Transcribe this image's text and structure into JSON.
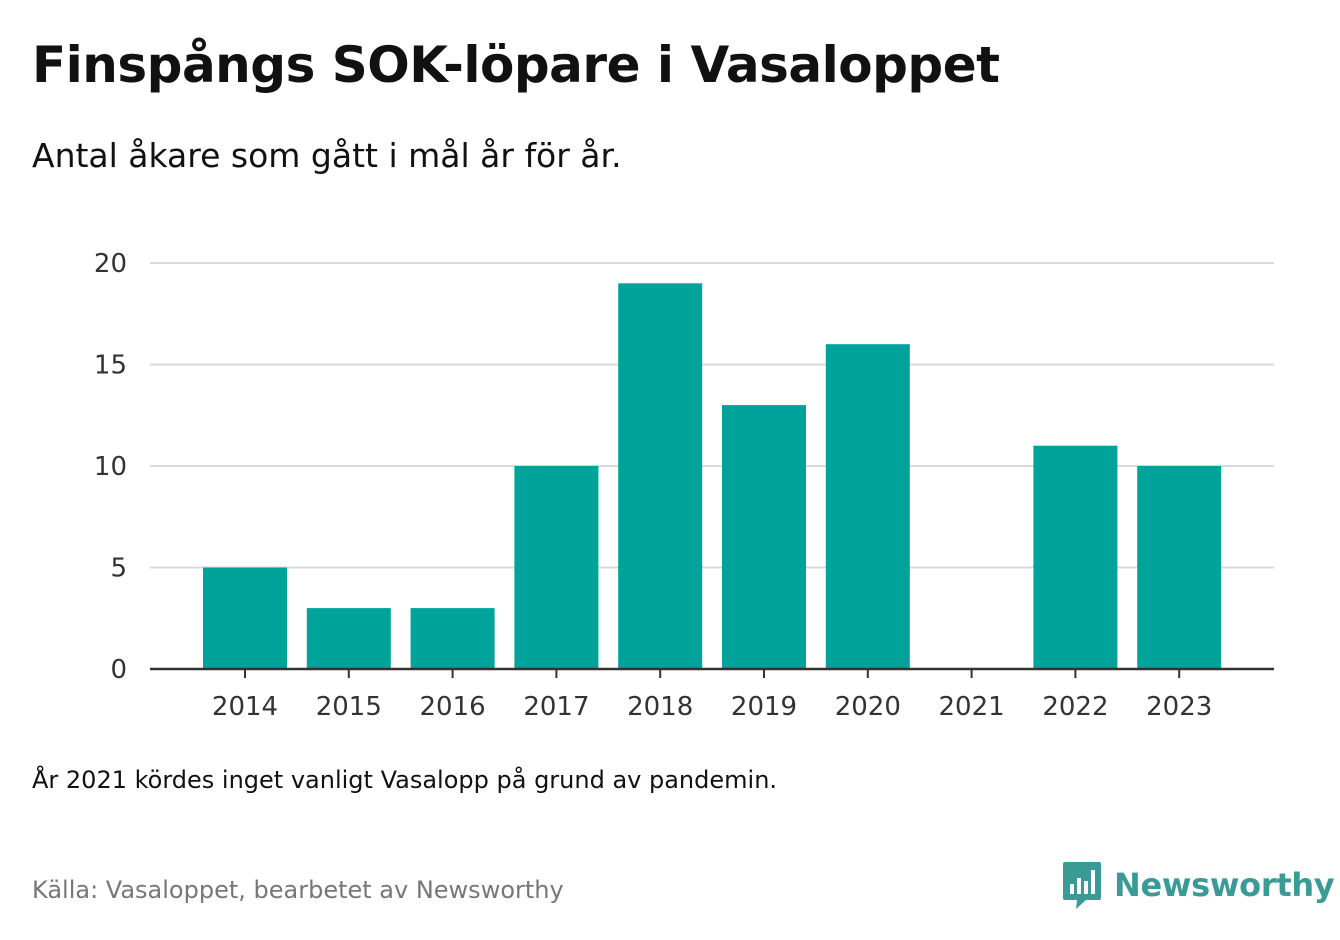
{
  "header": {
    "title": "Finspångs SOK-löpare i Vasaloppet",
    "subtitle": "Antal åkare som gått i mål år för år."
  },
  "footer": {
    "note": "År 2021 kördes inget vanligt Vasalopp på grund av pandemin.",
    "source": "Källa: Vasaloppet, bearbetet av Newsworthy",
    "logo_text": "Newsworthy",
    "logo_icon": "newsworthy-bar-chart-bubble-icon"
  },
  "colors": {
    "bar": "#00a39a",
    "grid": "#d9d9d9",
    "axis": "#333333",
    "logo": "#3b9a95"
  },
  "chart_data": {
    "type": "bar",
    "categories": [
      "2014",
      "2015",
      "2016",
      "2017",
      "2018",
      "2019",
      "2020",
      "2021",
      "2022",
      "2023"
    ],
    "values": [
      5,
      3,
      3,
      10,
      19,
      13,
      16,
      0,
      11,
      10
    ],
    "yticks": [
      0,
      5,
      10,
      15,
      20
    ],
    "ylim": [
      0,
      20
    ],
    "grid": true,
    "legend": "none"
  }
}
